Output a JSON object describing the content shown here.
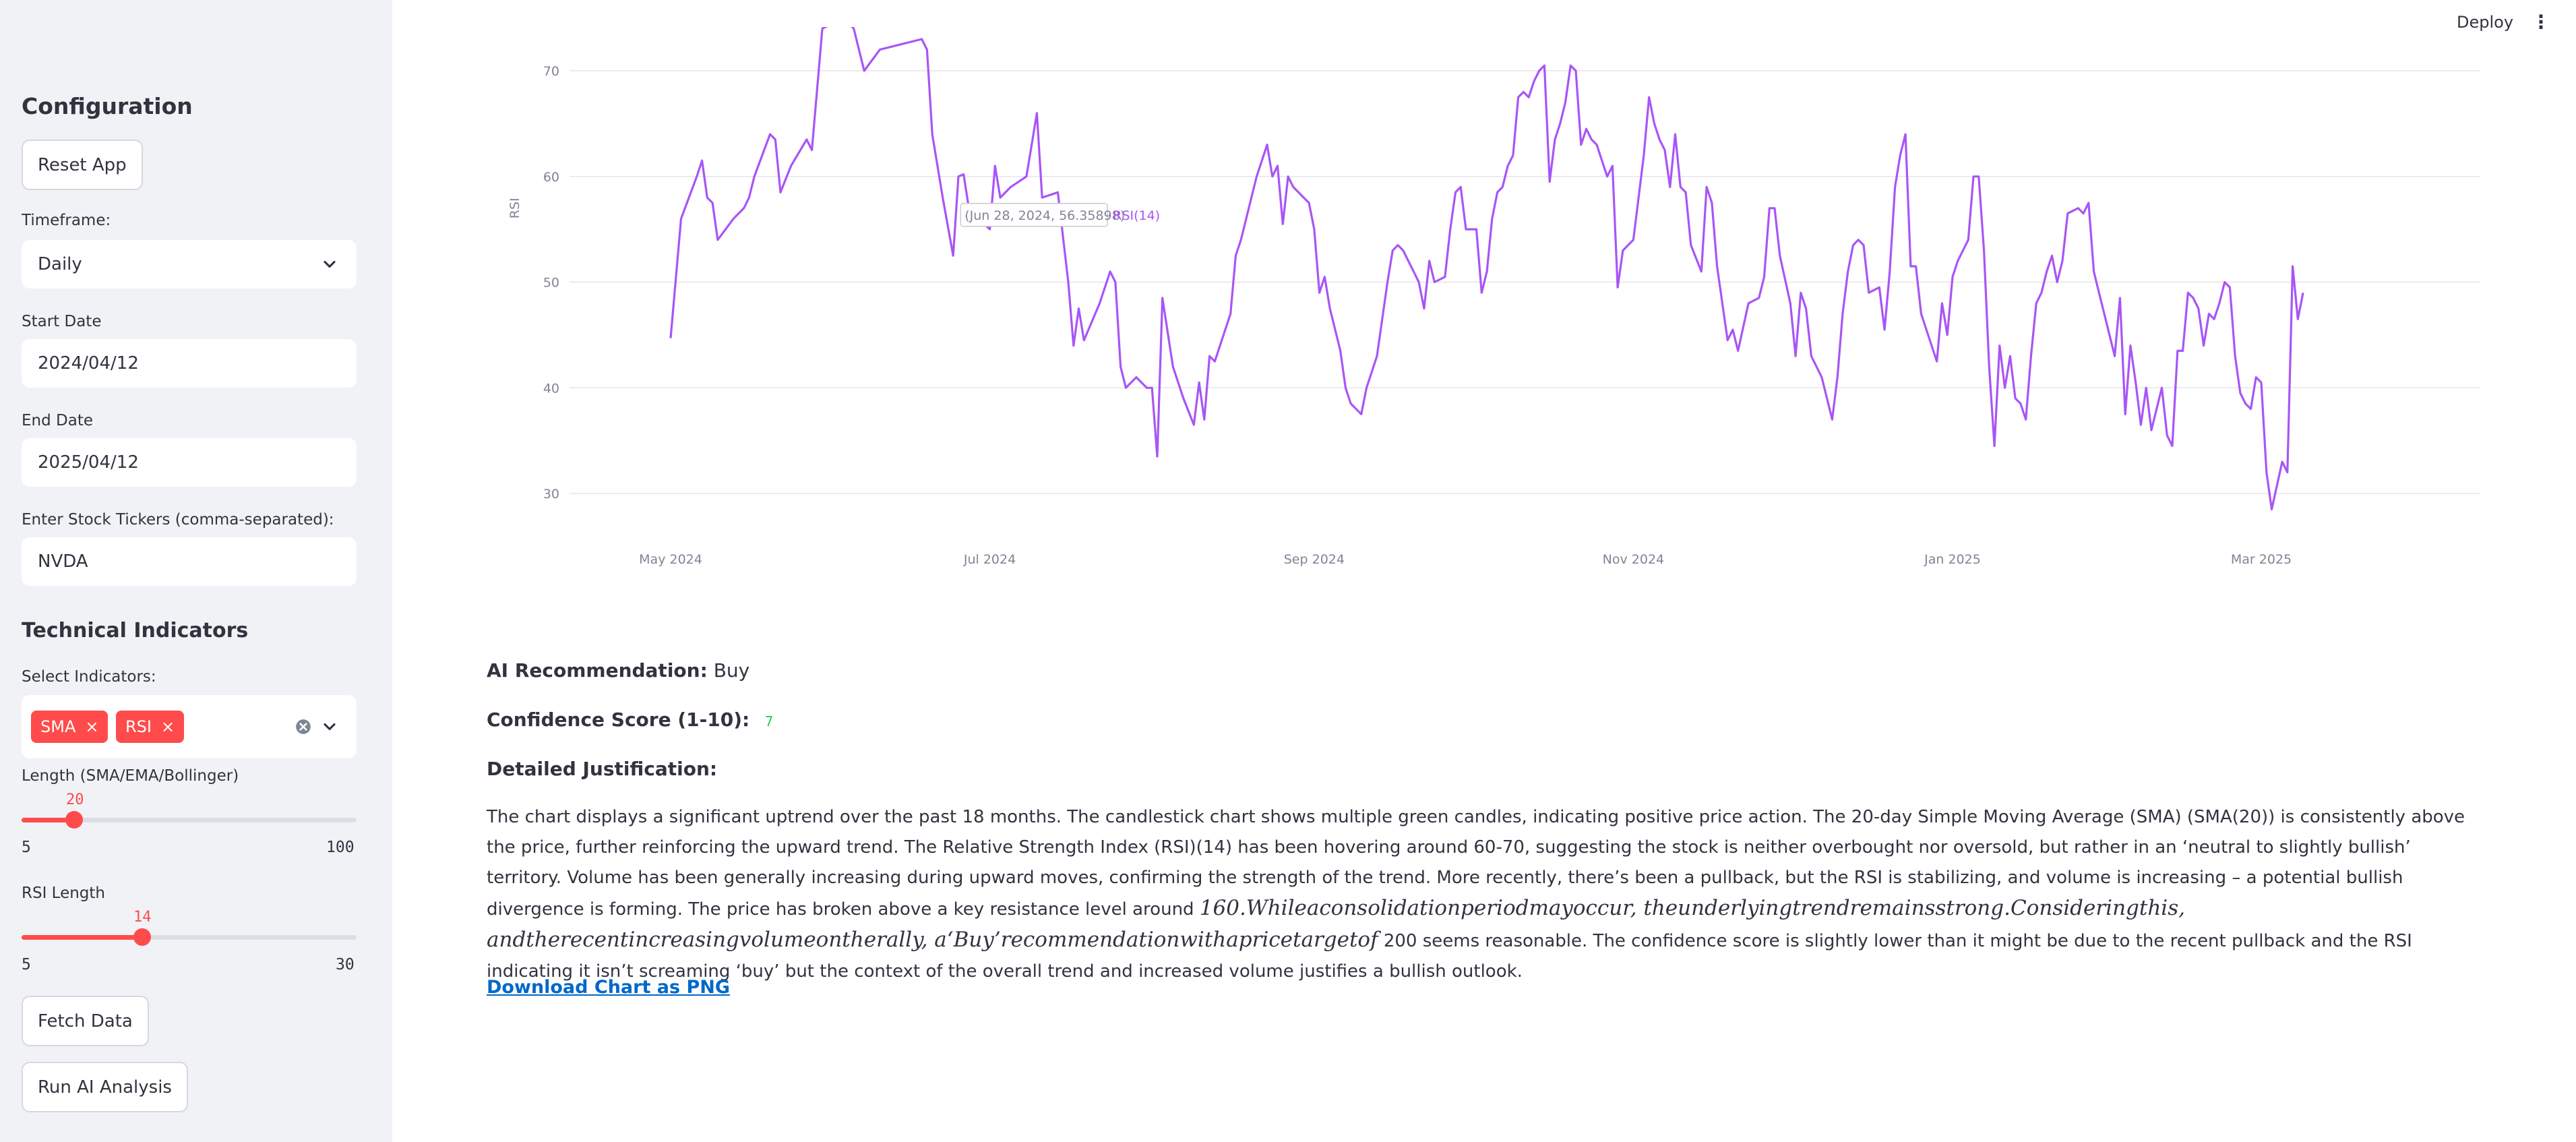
{
  "header": {
    "deploy_label": "Deploy",
    "menu_glyph": "⋮"
  },
  "sidebar": {
    "config_title": "Configuration",
    "reset_label": "Reset App",
    "timeframe_label": "Timeframe:",
    "timeframe_value": "Daily",
    "start_label": "Start Date",
    "start_value": "2024/04/12",
    "end_label": "End Date",
    "end_value": "2025/04/12",
    "tickers_label": "Enter Stock Tickers (comma-separated):",
    "tickers_value": "NVDA",
    "tech_title": "Technical Indicators",
    "select_label": "Select Indicators:",
    "indicators": [
      "SMA",
      "RSI"
    ],
    "tag_close": "×",
    "length_label": "Length (SMA/EMA/Bollinger)",
    "length": {
      "value": 20,
      "min": 5,
      "max": 100
    },
    "rsi_label": "RSI Length",
    "rsi": {
      "value": 14,
      "min": 5,
      "max": 30
    },
    "fetch_label": "Fetch Data",
    "run_label": "Run AI Analysis"
  },
  "chart_data": {
    "type": "line",
    "ylabel": "RSI",
    "series_name": "RSI(14)",
    "color": "#a855f7",
    "ylim": [
      26,
      72
    ],
    "yticks": [
      30,
      40,
      50,
      60,
      70
    ],
    "x_ticks": [
      {
        "date": "2024-05-01",
        "label": "May 2024"
      },
      {
        "date": "2024-07-01",
        "label": "Jul 2024"
      },
      {
        "date": "2024-09-01",
        "label": "Sep 2024"
      },
      {
        "date": "2024-11-01",
        "label": "Nov 2024"
      },
      {
        "date": "2025-01-01",
        "label": "Jan 2025"
      },
      {
        "date": "2025-03-01",
        "label": "Mar 2025"
      }
    ],
    "tooltip": {
      "text": "(Jun 28, 2024, 56.35898)",
      "series": "RSI(14)"
    },
    "points": [
      [
        "2024-05-01",
        44.7
      ],
      [
        "2024-05-03",
        56
      ],
      [
        "2024-05-06",
        60
      ],
      [
        "2024-05-07",
        61.5
      ],
      [
        "2024-05-08",
        58
      ],
      [
        "2024-05-09",
        57.5
      ],
      [
        "2024-05-10",
        54
      ],
      [
        "2024-05-13",
        56
      ],
      [
        "2024-05-15",
        57
      ],
      [
        "2024-05-16",
        58
      ],
      [
        "2024-05-17",
        60
      ],
      [
        "2024-05-20",
        64
      ],
      [
        "2024-05-21",
        63.5
      ],
      [
        "2024-05-22",
        58.5
      ],
      [
        "2024-05-24",
        61
      ],
      [
        "2024-05-27",
        63.5
      ],
      [
        "2024-05-28",
        62.5
      ],
      [
        "2024-05-30",
        74
      ],
      [
        "2024-06-03",
        75
      ],
      [
        "2024-06-05",
        74
      ],
      [
        "2024-06-07",
        70
      ],
      [
        "2024-06-10",
        72
      ],
      [
        "2024-06-18",
        73
      ],
      [
        "2024-06-19",
        72
      ],
      [
        "2024-06-20",
        64
      ],
      [
        "2024-06-22",
        58
      ],
      [
        "2024-06-24",
        52.5
      ],
      [
        "2024-06-25",
        60
      ],
      [
        "2024-06-26",
        60.2
      ],
      [
        "2024-06-27",
        57
      ],
      [
        "2024-06-28",
        56.36
      ],
      [
        "2024-07-01",
        55
      ],
      [
        "2024-07-02",
        61
      ],
      [
        "2024-07-03",
        58
      ],
      [
        "2024-07-05",
        59
      ],
      [
        "2024-07-08",
        60
      ],
      [
        "2024-07-09",
        63
      ],
      [
        "2024-07-10",
        66
      ],
      [
        "2024-07-11",
        58
      ],
      [
        "2024-07-14",
        58.5
      ],
      [
        "2024-07-16",
        50
      ],
      [
        "2024-07-17",
        44
      ],
      [
        "2024-07-18",
        47.5
      ],
      [
        "2024-07-19",
        44.5
      ],
      [
        "2024-07-22",
        48
      ],
      [
        "2024-07-24",
        51
      ],
      [
        "2024-07-25",
        50
      ],
      [
        "2024-07-26",
        42
      ],
      [
        "2024-07-27",
        40
      ],
      [
        "2024-07-29",
        41
      ],
      [
        "2024-07-31",
        40
      ],
      [
        "2024-08-01",
        40
      ],
      [
        "2024-08-02",
        33.5
      ],
      [
        "2024-08-03",
        48.5
      ],
      [
        "2024-08-05",
        42
      ],
      [
        "2024-08-07",
        39
      ],
      [
        "2024-08-09",
        36.5
      ],
      [
        "2024-08-10",
        40.5
      ],
      [
        "2024-08-11",
        37
      ],
      [
        "2024-08-12",
        43
      ],
      [
        "2024-08-13",
        42.5
      ],
      [
        "2024-08-14",
        44
      ],
      [
        "2024-08-16",
        47
      ],
      [
        "2024-08-17",
        52.5
      ],
      [
        "2024-08-18",
        54
      ],
      [
        "2024-08-20",
        58
      ],
      [
        "2024-08-21",
        60
      ],
      [
        "2024-08-23",
        63
      ],
      [
        "2024-08-24",
        60
      ],
      [
        "2024-08-25",
        61
      ],
      [
        "2024-08-26",
        55.5
      ],
      [
        "2024-08-27",
        60
      ],
      [
        "2024-08-28",
        59
      ],
      [
        "2024-08-30",
        58
      ],
      [
        "2024-08-31",
        57.5
      ],
      [
        "2024-09-01",
        55
      ],
      [
        "2024-09-02",
        49
      ],
      [
        "2024-09-03",
        50.5
      ],
      [
        "2024-09-04",
        47.5
      ],
      [
        "2024-09-06",
        43.5
      ],
      [
        "2024-09-07",
        40
      ],
      [
        "2024-09-08",
        38.5
      ],
      [
        "2024-09-10",
        37.5
      ],
      [
        "2024-09-11",
        40
      ],
      [
        "2024-09-13",
        43
      ],
      [
        "2024-09-15",
        50
      ],
      [
        "2024-09-16",
        53
      ],
      [
        "2024-09-17",
        53.5
      ],
      [
        "2024-09-18",
        53
      ],
      [
        "2024-09-20",
        51
      ],
      [
        "2024-09-21",
        50
      ],
      [
        "2024-09-22",
        47.5
      ],
      [
        "2024-09-23",
        52
      ],
      [
        "2024-09-24",
        50
      ],
      [
        "2024-09-26",
        50.5
      ],
      [
        "2024-09-27",
        55
      ],
      [
        "2024-09-28",
        58.5
      ],
      [
        "2024-09-29",
        59
      ],
      [
        "2024-09-30",
        55
      ],
      [
        "2024-10-01",
        55
      ],
      [
        "2024-10-02",
        55
      ],
      [
        "2024-10-03",
        49
      ],
      [
        "2024-10-04",
        51
      ],
      [
        "2024-10-05",
        56
      ],
      [
        "2024-10-06",
        58.5
      ],
      [
        "2024-10-07",
        59
      ],
      [
        "2024-10-08",
        61
      ],
      [
        "2024-10-09",
        62
      ],
      [
        "2024-10-10",
        67.5
      ],
      [
        "2024-10-11",
        68
      ],
      [
        "2024-10-12",
        67.5
      ],
      [
        "2024-10-13",
        69
      ],
      [
        "2024-10-14",
        70
      ],
      [
        "2024-10-15",
        70.5
      ],
      [
        "2024-10-16",
        59.5
      ],
      [
        "2024-10-17",
        63.5
      ],
      [
        "2024-10-18",
        65
      ],
      [
        "2024-10-19",
        67
      ],
      [
        "2024-10-20",
        70.5
      ],
      [
        "2024-10-21",
        70
      ],
      [
        "2024-10-22",
        63
      ],
      [
        "2024-10-23",
        64.5
      ],
      [
        "2024-10-24",
        63.5
      ],
      [
        "2024-10-25",
        63
      ],
      [
        "2024-10-26",
        61.5
      ],
      [
        "2024-10-27",
        60
      ],
      [
        "2024-10-28",
        61
      ],
      [
        "2024-10-29",
        49.5
      ],
      [
        "2024-10-30",
        53
      ],
      [
        "2024-11-01",
        54
      ],
      [
        "2024-11-03",
        62
      ],
      [
        "2024-11-04",
        67.5
      ],
      [
        "2024-11-05",
        65
      ],
      [
        "2024-11-06",
        63.5
      ],
      [
        "2024-11-07",
        62.5
      ],
      [
        "2024-11-08",
        59
      ],
      [
        "2024-11-09",
        64
      ],
      [
        "2024-11-10",
        59
      ],
      [
        "2024-11-11",
        58.5
      ],
      [
        "2024-11-12",
        53.5
      ],
      [
        "2024-11-14",
        51
      ],
      [
        "2024-11-15",
        59
      ],
      [
        "2024-11-16",
        57.5
      ],
      [
        "2024-11-17",
        51.5
      ],
      [
        "2024-11-18",
        48
      ],
      [
        "2024-11-19",
        44.5
      ],
      [
        "2024-11-20",
        45.5
      ],
      [
        "2024-11-21",
        43.5
      ],
      [
        "2024-11-23",
        48
      ],
      [
        "2024-11-25",
        48.5
      ],
      [
        "2024-11-26",
        50.5
      ],
      [
        "2024-11-27",
        57
      ],
      [
        "2024-11-28",
        57
      ],
      [
        "2024-11-29",
        52.5
      ],
      [
        "2024-12-01",
        48
      ],
      [
        "2024-12-02",
        43
      ],
      [
        "2024-12-03",
        49
      ],
      [
        "2024-12-04",
        47.5
      ],
      [
        "2024-12-05",
        43
      ],
      [
        "2024-12-07",
        41
      ],
      [
        "2024-12-09",
        37
      ],
      [
        "2024-12-10",
        41
      ],
      [
        "2024-12-11",
        47
      ],
      [
        "2024-12-12",
        51
      ],
      [
        "2024-12-13",
        53.5
      ],
      [
        "2024-12-14",
        54
      ],
      [
        "2024-12-15",
        53.5
      ],
      [
        "2024-12-16",
        49
      ],
      [
        "2024-12-18",
        49.5
      ],
      [
        "2024-12-19",
        45.5
      ],
      [
        "2024-12-20",
        51
      ],
      [
        "2024-12-21",
        59
      ],
      [
        "2024-12-22",
        62
      ],
      [
        "2024-12-23",
        64
      ],
      [
        "2024-12-24",
        51.5
      ],
      [
        "2024-12-25",
        51.5
      ],
      [
        "2024-12-26",
        47
      ],
      [
        "2024-12-28",
        44
      ],
      [
        "2024-12-29",
        42.5
      ],
      [
        "2024-12-30",
        48
      ],
      [
        "2024-12-31",
        45
      ],
      [
        "2025-01-01",
        50.5
      ],
      [
        "2025-01-02",
        52
      ],
      [
        "2025-01-04",
        54
      ],
      [
        "2025-01-05",
        60
      ],
      [
        "2025-01-06",
        60
      ],
      [
        "2025-01-07",
        53
      ],
      [
        "2025-01-08",
        42
      ],
      [
        "2025-01-09",
        34.5
      ],
      [
        "2025-01-10",
        44
      ],
      [
        "2025-01-11",
        40
      ],
      [
        "2025-01-12",
        43
      ],
      [
        "2025-01-13",
        39
      ],
      [
        "2025-01-14",
        38.5
      ],
      [
        "2025-01-15",
        37
      ],
      [
        "2025-01-16",
        43
      ],
      [
        "2025-01-17",
        48
      ],
      [
        "2025-01-18",
        49
      ],
      [
        "2025-01-19",
        51
      ],
      [
        "2025-01-20",
        52.5
      ],
      [
        "2025-01-21",
        50
      ],
      [
        "2025-01-22",
        52
      ],
      [
        "2025-01-23",
        56.5
      ],
      [
        "2025-01-25",
        57
      ],
      [
        "2025-01-26",
        56.5
      ],
      [
        "2025-01-27",
        57.5
      ],
      [
        "2025-01-28",
        51
      ],
      [
        "2025-01-29",
        49
      ],
      [
        "2025-01-30",
        47
      ],
      [
        "2025-02-01",
        43
      ],
      [
        "2025-02-02",
        48.5
      ],
      [
        "2025-02-03",
        37.5
      ],
      [
        "2025-02-04",
        44
      ],
      [
        "2025-02-05",
        40.5
      ],
      [
        "2025-02-06",
        36.5
      ],
      [
        "2025-02-07",
        40
      ],
      [
        "2025-02-08",
        36
      ],
      [
        "2025-02-10",
        40
      ],
      [
        "2025-02-11",
        35.5
      ],
      [
        "2025-02-12",
        34.5
      ],
      [
        "2025-02-13",
        43.5
      ],
      [
        "2025-02-14",
        43.5
      ],
      [
        "2025-02-15",
        49
      ],
      [
        "2025-02-16",
        48.5
      ],
      [
        "2025-02-17",
        47.5
      ],
      [
        "2025-02-18",
        44
      ],
      [
        "2025-02-19",
        47
      ],
      [
        "2025-02-20",
        46.5
      ],
      [
        "2025-02-21",
        48
      ],
      [
        "2025-02-22",
        50
      ],
      [
        "2025-02-23",
        49.5
      ],
      [
        "2025-02-24",
        43
      ],
      [
        "2025-02-25",
        39.5
      ],
      [
        "2025-02-26",
        38.5
      ],
      [
        "2025-02-27",
        38
      ],
      [
        "2025-02-28",
        41
      ],
      [
        "2025-03-01",
        40.5
      ],
      [
        "2025-03-02",
        32
      ],
      [
        "2025-03-03",
        28.5
      ],
      [
        "2025-03-05",
        33
      ],
      [
        "2025-03-06",
        32
      ],
      [
        "2025-03-07",
        51.5
      ],
      [
        "2025-03-08",
        46.5
      ],
      [
        "2025-03-09",
        49
      ]
    ]
  },
  "main": {
    "rec_label": "AI Recommendation:",
    "rec_value": "Buy",
    "conf_label": "Confidence Score (1-10):",
    "conf_value": "7",
    "just_label": "Detailed Justification:",
    "just_p1": "The chart displays a significant uptrend over the past 18 months. The candlestick chart shows multiple green candles, indicating positive price action. The 20-day Simple Moving Average (SMA) (SMA(20)) is consistently above the price, further reinforcing the upward trend. The Relative Strength Index (RSI)(14) has been hovering around 60-70, suggesting the stock is neither overbought nor oversold, but rather in an ‘neutral to slightly bullish’ territory. Volume has been generally increasing during upward moves, confirming the strength of the trend. More recently, there’s been a pullback, but the RSI is stabilizing, and volume is increasing – a potential bullish divergence is forming. The price has broken above a key resistance level around",
    "just_math": "160.Whileaconsolidationperiodmayoccur, theunderlyingtrendremainsstrong.Consideringthis, andtherecentincreasingvolumeontherally, a‘Buy’recommendationwithapricetargetof",
    "just_p2": "200 seems reasonable. The confidence score is slightly lower than it might be due to the recent pullback and the RSI indicating it isn’t screaming ‘buy’ but the context of the overall trend and increased volume justifies a bullish outlook.",
    "download_label": "Download Chart as PNG"
  }
}
